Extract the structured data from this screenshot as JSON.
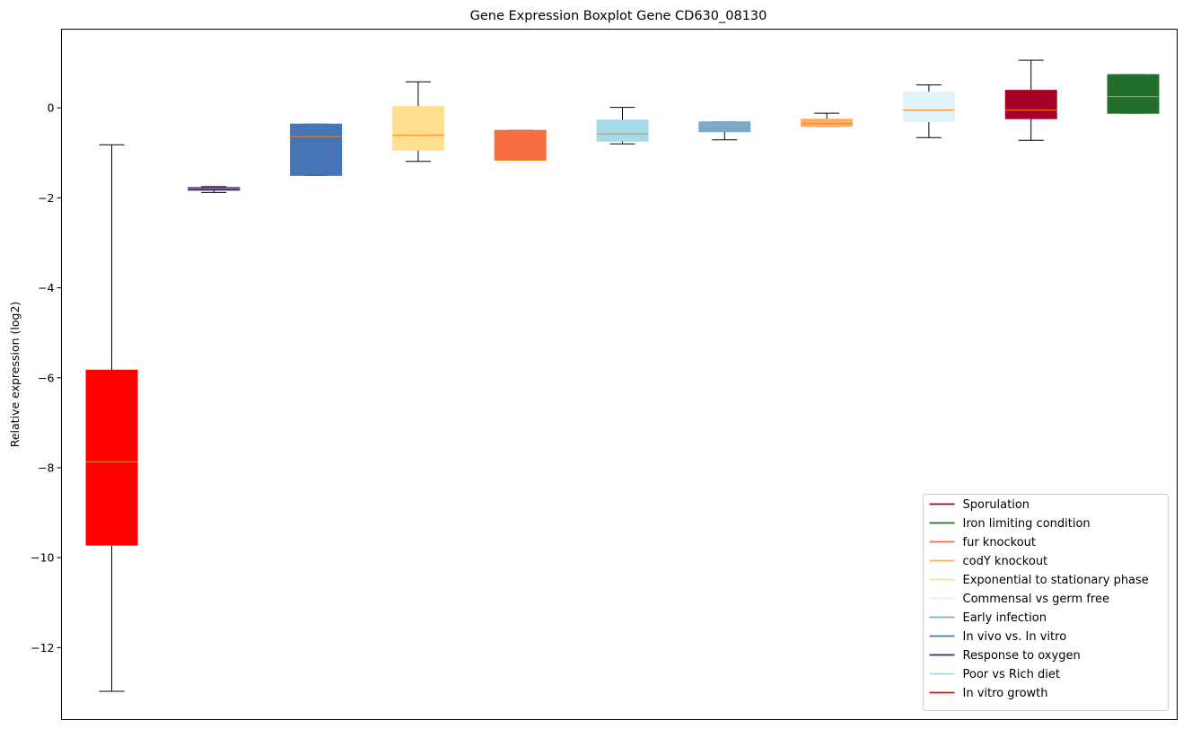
{
  "chart_data": {
    "type": "boxplot",
    "title": "Gene Expression Boxplot Gene CD630_08130",
    "xlabel": "",
    "ylabel": "Relative expression (log2)",
    "ylim": [
      -13.6,
      1.75
    ],
    "yticks": [
      -12,
      -10,
      -8,
      -6,
      -4,
      -2,
      0
    ],
    "ytick_labels": [
      "−12",
      "−10",
      "−8",
      "−6",
      "−4",
      "−2",
      "0"
    ],
    "median_color": "#ff7f0e",
    "boxes": [
      {
        "color": "#ff0000",
        "whisker_low": -12.97,
        "q1": -9.72,
        "median": -7.87,
        "q3": -5.83,
        "whisker_high": -0.82
      },
      {
        "color": "#2b2e8c",
        "whisker_low": -1.88,
        "q1": -1.83,
        "median": -1.79,
        "q3": -1.77,
        "whisker_high": -1.75
      },
      {
        "color": "#4575b4",
        "whisker_low": -1.5,
        "q1": -1.5,
        "median": -0.64,
        "q3": -0.36,
        "whisker_high": -0.36
      },
      {
        "color": "#fee090",
        "whisker_low": -1.19,
        "q1": -0.94,
        "median": -0.61,
        "q3": 0.03,
        "whisker_high": 0.58
      },
      {
        "color": "#f46d43",
        "whisker_low": -1.16,
        "q1": -1.16,
        "median": -1.16,
        "q3": -0.5,
        "whisker_high": -0.5
      },
      {
        "color": "#a6d9ea",
        "whisker_low": -0.8,
        "q1": -0.74,
        "median": -0.58,
        "q3": -0.27,
        "whisker_high": 0.01
      },
      {
        "color": "#74add1",
        "whisker_low": -0.71,
        "q1": -0.53,
        "median": -0.46,
        "q3": -0.31,
        "whisker_high": -0.31
      },
      {
        "color": "#fdae61",
        "whisker_low": -0.41,
        "q1": -0.41,
        "median": -0.35,
        "q3": -0.25,
        "whisker_high": -0.12
      },
      {
        "color": "#e0f3f8",
        "whisker_low": -0.66,
        "q1": -0.31,
        "median": -0.05,
        "q3": 0.35,
        "whisker_high": 0.51
      },
      {
        "color": "#a50026",
        "whisker_low": -0.72,
        "q1": -0.24,
        "median": -0.05,
        "q3": 0.39,
        "whisker_high": 1.06
      },
      {
        "color": "#226e2c",
        "whisker_low": -0.12,
        "q1": -0.12,
        "median": 0.25,
        "q3": 0.74,
        "whisker_high": 0.74
      }
    ],
    "legend": {
      "placement": "lower right",
      "entries": [
        {
          "label": "Sporulation",
          "color": "#a50026"
        },
        {
          "label": "Iron limiting condition",
          "color": "#226e2c"
        },
        {
          "label": "fur knockout",
          "color": "#f46d43"
        },
        {
          "label": "codY knockout",
          "color": "#fdae61"
        },
        {
          "label": "Exponential to stationary phase",
          "color": "#fee090"
        },
        {
          "label": "Commensal vs germ free",
          "color": "#e0f3f8"
        },
        {
          "label": "Early infection",
          "color": "#74add1"
        },
        {
          "label": "In vivo vs. In vitro",
          "color": "#4575b4"
        },
        {
          "label": "Response to oxygen",
          "color": "#2b2e8c"
        },
        {
          "label": "Poor vs Rich diet",
          "color": "#a6d9ea"
        },
        {
          "label": "In vitro growth",
          "color": "#ff0000"
        }
      ]
    }
  }
}
